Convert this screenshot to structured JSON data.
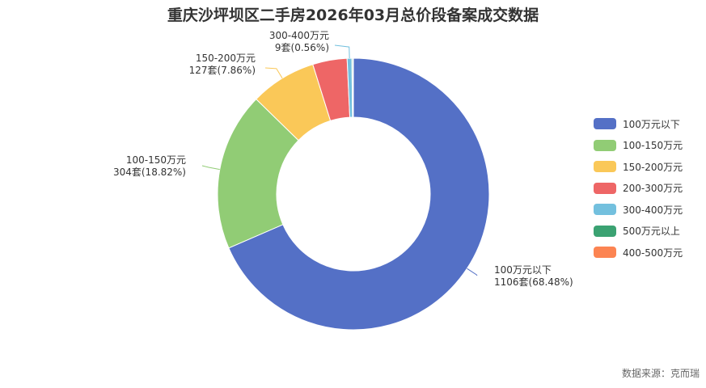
{
  "chart_data": {
    "type": "pie",
    "variant": "donut",
    "title": "重庆沙坪坝区二手房2026年03月总价段备案成交数据",
    "series": [
      {
        "name": "100万元以下",
        "count": 1106,
        "value": 68.48,
        "count_label": "1106套(68.48%)",
        "color": "#5470c6"
      },
      {
        "name": "100-150万元",
        "count": 304,
        "value": 18.82,
        "count_label": "304套(18.82%)",
        "color": "#91cc75"
      },
      {
        "name": "150-200万元",
        "count": 127,
        "value": 7.86,
        "count_label": "127套(7.86%)",
        "color": "#fac858"
      },
      {
        "name": "200-300万元",
        "count": 66,
        "value": 4.09,
        "count_label": "",
        "color": "#ee6666"
      },
      {
        "name": "300-400万元",
        "count": 9,
        "value": 0.56,
        "count_label": "9套(0.56%)",
        "color": "#73c0de"
      },
      {
        "name": "500万元以上",
        "count": 2,
        "value": 0.12,
        "count_label": "",
        "color": "#3ba272"
      },
      {
        "name": "400-500万元",
        "count": 1,
        "value": 0.06,
        "count_label": "",
        "color": "#fc8452"
      }
    ],
    "legend_position": "right"
  },
  "source": "数据来源：克而瑞"
}
